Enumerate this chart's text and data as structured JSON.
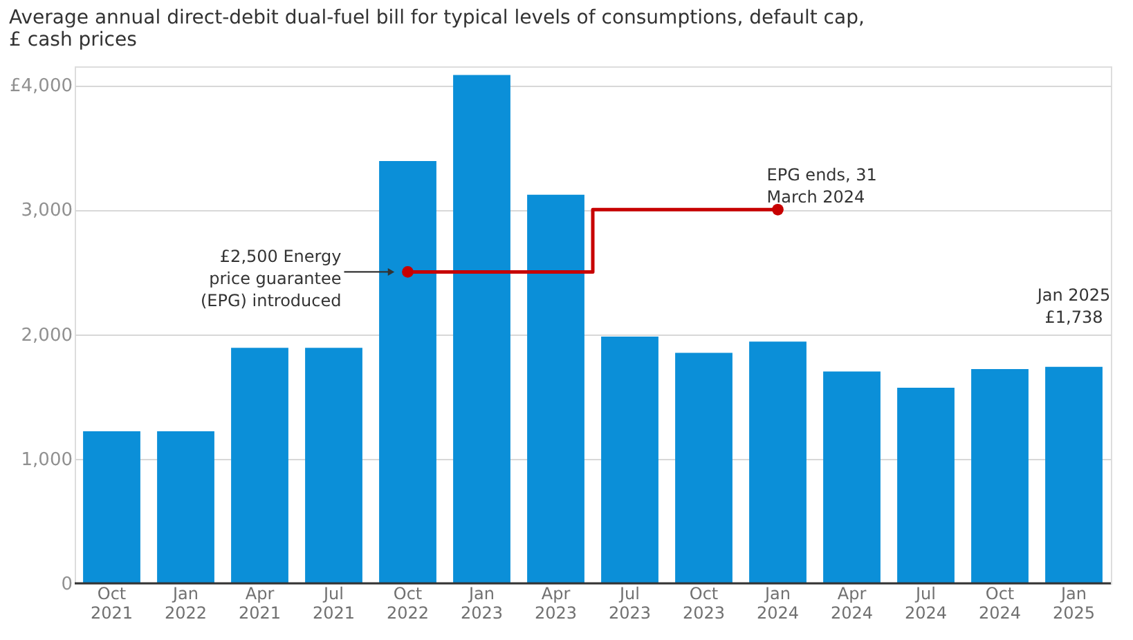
{
  "chart_data": {
    "type": "bar",
    "title": "Average annual direct-debit dual-fuel bill for typical levels of consumptions, default cap,\n£ cash prices",
    "categories": [
      "Oct 2021",
      "Jan 2022",
      "Apr 2021",
      "Jul 2021",
      "Oct 2022",
      "Jan 2023",
      "Apr 2023",
      "Jul 2023",
      "Oct 2023",
      "Jan 2024",
      "Apr 2024",
      "Jul 2024",
      "Oct 2024",
      "Jan 2025"
    ],
    "series": [
      {
        "color": "#0b8fd8",
        "values": [
          1220,
          1220,
          1890,
          1890,
          3390,
          4080,
          3120,
          1980,
          1850,
          1940,
          1700,
          1570,
          1720,
          1738
        ]
      },
      {
        "type": "step",
        "color": "#c70000",
        "values": [
          null,
          null,
          null,
          null,
          2500,
          2500,
          2500,
          3000,
          3000,
          3000,
          null,
          null,
          null,
          null
        ]
      }
    ],
    "ylim": [
      0,
      4150
    ],
    "yticks": [
      0,
      {
        "value": 1000,
        "label": "1,000"
      },
      {
        "value": 2000,
        "label": "2,000"
      },
      {
        "value": 3000,
        "label": "3,000"
      },
      {
        "value": 4000,
        "label": "£4,000"
      }
    ],
    "grid": "y",
    "annotations": [
      "£2,500 Energy\nprice guarantee\n(EPG) introduced",
      {
        "text": "EPG ends, 31\nMarch 2024",
        "x": "Jan 2024",
        "y": 3000
      },
      {
        "text": "Jan 2025\n£1,738",
        "x": "Jan 2025",
        "y": 1738
      }
    ]
  }
}
